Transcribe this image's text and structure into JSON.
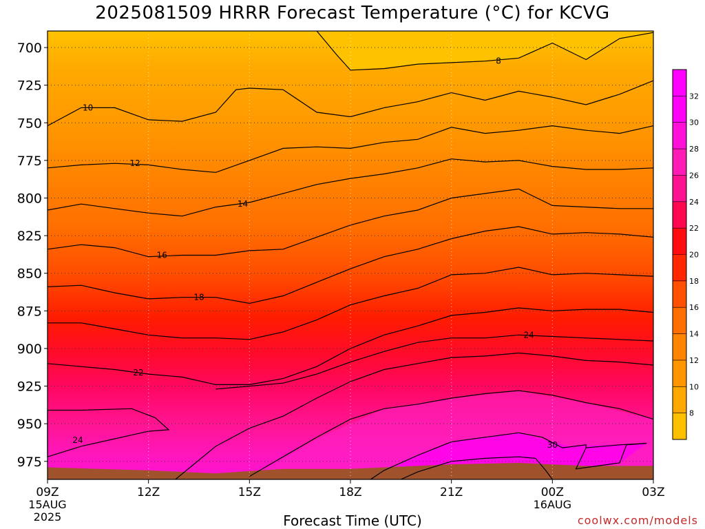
{
  "title": "2025081509 HRRR Forecast Temperature (°C) for KCVG",
  "credit": "coolwx.com/models",
  "chart_data": {
    "type": "contour",
    "variable": "Temperature",
    "units": "°C",
    "xlabel": "Forecast Time (UTC)",
    "ylabel": "",
    "x_range_hours": [
      0,
      18
    ],
    "x_ticks": [
      {
        "hour": 0,
        "label": "09Z",
        "sub": [
          "15AUG",
          "2025"
        ]
      },
      {
        "hour": 3,
        "label": "12Z"
      },
      {
        "hour": 6,
        "label": "15Z"
      },
      {
        "hour": 9,
        "label": "18Z"
      },
      {
        "hour": 12,
        "label": "21Z"
      },
      {
        "hour": 15,
        "label": "00Z",
        "sub": [
          "16AUG"
        ]
      },
      {
        "hour": 18,
        "label": "03Z"
      }
    ],
    "y_axis": {
      "type": "pressure_hPa",
      "inverted": true,
      "range": [
        689,
        987
      ],
      "ticks": [
        700,
        725,
        750,
        775,
        800,
        825,
        850,
        875,
        900,
        925,
        950,
        975
      ]
    },
    "grid": "dotted",
    "colorbar": {
      "position": "right",
      "labels": [
        8,
        10,
        12,
        14,
        16,
        18,
        20,
        22,
        24,
        26,
        28,
        30,
        32
      ],
      "colors": [
        "#ffc000",
        "#ffa800",
        "#ff9600",
        "#ff8400",
        "#ff6f00",
        "#ff5000",
        "#ff2800",
        "#ff0c10",
        "#ff0850",
        "#ff1290",
        "#ff1cb4",
        "#ff10d8",
        "#ff00f6",
        "#ff00ff"
      ]
    },
    "contour_levels": [
      8,
      10,
      12,
      14,
      16,
      18,
      20,
      22,
      24,
      26,
      28,
      30
    ],
    "contours": [
      {
        "level": 8,
        "labeled": true,
        "points": [
          [
            8.0,
            689
          ],
          [
            8.6,
            705
          ],
          [
            9.0,
            715
          ],
          [
            10,
            714
          ],
          [
            11,
            711
          ],
          [
            12,
            710
          ],
          [
            13,
            709
          ],
          [
            14,
            707
          ],
          [
            15,
            697
          ],
          [
            16,
            708
          ],
          [
            17,
            694
          ],
          [
            18,
            690
          ]
        ]
      },
      {
        "level": 10,
        "labeled": true,
        "points": [
          [
            0,
            752
          ],
          [
            1,
            740
          ],
          [
            2,
            740
          ],
          [
            3,
            748
          ],
          [
            4,
            749
          ],
          [
            5,
            743
          ],
          [
            5.6,
            728
          ],
          [
            6,
            727
          ],
          [
            7,
            728
          ],
          [
            8,
            743
          ],
          [
            9,
            746
          ],
          [
            10,
            740
          ],
          [
            11,
            736
          ],
          [
            12,
            730
          ],
          [
            13,
            735
          ],
          [
            14,
            729
          ],
          [
            15,
            733
          ],
          [
            16,
            738
          ],
          [
            17,
            731
          ],
          [
            18,
            722
          ]
        ]
      },
      {
        "level": 12,
        "labeled": true,
        "points": [
          [
            0,
            780
          ],
          [
            1,
            778
          ],
          [
            2,
            777
          ],
          [
            3,
            778
          ],
          [
            4,
            781
          ],
          [
            5,
            783
          ],
          [
            6,
            775
          ],
          [
            7,
            767
          ],
          [
            8,
            766
          ],
          [
            9,
            767
          ],
          [
            10,
            763
          ],
          [
            11,
            761
          ],
          [
            12,
            753
          ],
          [
            13,
            757
          ],
          [
            14,
            755
          ],
          [
            15,
            752
          ],
          [
            16,
            755
          ],
          [
            17,
            757
          ],
          [
            18,
            752
          ]
        ]
      },
      {
        "level": 14,
        "labeled": true,
        "points": [
          [
            0,
            808
          ],
          [
            1,
            804
          ],
          [
            2,
            807
          ],
          [
            3,
            810
          ],
          [
            4,
            812
          ],
          [
            5,
            806
          ],
          [
            6,
            803
          ],
          [
            7,
            797
          ],
          [
            8,
            791
          ],
          [
            9,
            787
          ],
          [
            10,
            784
          ],
          [
            11,
            780
          ],
          [
            12,
            774
          ],
          [
            13,
            776
          ],
          [
            14,
            775
          ],
          [
            15,
            779
          ],
          [
            16,
            781
          ],
          [
            17,
            781
          ],
          [
            18,
            780
          ]
        ]
      },
      {
        "level": 16,
        "labeled": true,
        "points": [
          [
            0,
            834
          ],
          [
            1,
            831
          ],
          [
            2,
            833
          ],
          [
            3,
            839
          ],
          [
            4,
            838
          ],
          [
            5,
            838
          ],
          [
            6,
            835
          ],
          [
            7,
            834
          ],
          [
            8,
            826
          ],
          [
            9,
            818
          ],
          [
            10,
            812
          ],
          [
            11,
            808
          ],
          [
            12,
            800
          ],
          [
            13,
            797
          ],
          [
            14,
            794
          ],
          [
            15,
            805
          ],
          [
            16,
            806
          ],
          [
            17,
            807
          ],
          [
            18,
            807
          ]
        ]
      },
      {
        "level": 18,
        "labeled": true,
        "points": [
          [
            0,
            859
          ],
          [
            1,
            858
          ],
          [
            2,
            863
          ],
          [
            3,
            867
          ],
          [
            4,
            866
          ],
          [
            5,
            866
          ],
          [
            6,
            870
          ],
          [
            7,
            865
          ],
          [
            8,
            856
          ],
          [
            9,
            847
          ],
          [
            10,
            839
          ],
          [
            11,
            834
          ],
          [
            12,
            827
          ],
          [
            13,
            822
          ],
          [
            14,
            819
          ],
          [
            15,
            824
          ],
          [
            16,
            823
          ],
          [
            17,
            824
          ],
          [
            18,
            826
          ]
        ]
      },
      {
        "level": 20,
        "labeled": false,
        "points": [
          [
            0,
            883
          ],
          [
            1,
            883
          ],
          [
            2,
            887
          ],
          [
            3,
            891
          ],
          [
            4,
            893
          ],
          [
            5,
            893
          ],
          [
            6,
            894
          ],
          [
            7,
            889
          ],
          [
            8,
            881
          ],
          [
            9,
            871
          ],
          [
            10,
            865
          ],
          [
            11,
            860
          ],
          [
            12,
            851
          ],
          [
            13,
            850
          ],
          [
            14,
            846
          ],
          [
            15,
            851
          ],
          [
            16,
            850
          ],
          [
            17,
            851
          ],
          [
            18,
            852
          ]
        ]
      },
      {
        "level": 22,
        "labeled": true,
        "points": [
          [
            0,
            910
          ],
          [
            1,
            912
          ],
          [
            2,
            914
          ],
          [
            3,
            917
          ],
          [
            4,
            919
          ],
          [
            5,
            924
          ],
          [
            6,
            924
          ],
          [
            7,
            920
          ],
          [
            8,
            912
          ],
          [
            9,
            900
          ],
          [
            10,
            891
          ],
          [
            11,
            885
          ],
          [
            12,
            878
          ],
          [
            13,
            876
          ],
          [
            14,
            873
          ],
          [
            15,
            875
          ],
          [
            16,
            874
          ],
          [
            17,
            874
          ],
          [
            18,
            876
          ]
        ]
      },
      {
        "level": 24,
        "labeled": true,
        "points": [
          [
            0,
            972
          ],
          [
            1,
            965
          ],
          [
            2,
            960
          ],
          [
            3,
            955
          ],
          [
            3.6,
            954
          ],
          [
            3.2,
            946
          ],
          [
            2.5,
            940
          ],
          [
            1,
            941
          ],
          [
            0,
            941
          ],
          [
            0,
            972
          ]
        ]
      },
      {
        "level": 24,
        "labeled": true,
        "points": [
          [
            5,
            927
          ],
          [
            6,
            925
          ],
          [
            7,
            923
          ],
          [
            8,
            917
          ],
          [
            9,
            909
          ],
          [
            10,
            902
          ],
          [
            11,
            896
          ],
          [
            12,
            893
          ],
          [
            13,
            893
          ],
          [
            14,
            891
          ],
          [
            15,
            892
          ],
          [
            16,
            893
          ],
          [
            17,
            894
          ],
          [
            18,
            895
          ]
        ]
      },
      {
        "level": 26,
        "labeled": false,
        "points": [
          [
            3.8,
            987
          ],
          [
            5,
            965
          ],
          [
            6,
            953
          ],
          [
            7,
            945
          ],
          [
            8,
            933
          ],
          [
            9,
            922
          ],
          [
            10,
            914
          ],
          [
            11,
            910
          ],
          [
            12,
            906
          ],
          [
            13,
            905
          ],
          [
            14,
            903
          ],
          [
            15,
            905
          ],
          [
            16,
            908
          ],
          [
            17,
            909
          ],
          [
            18,
            911
          ]
        ]
      },
      {
        "level": 28,
        "labeled": false,
        "points": [
          [
            6,
            985
          ],
          [
            7,
            972
          ],
          [
            8,
            959
          ],
          [
            9,
            947
          ],
          [
            10,
            940
          ],
          [
            11,
            937
          ],
          [
            12,
            933
          ],
          [
            13,
            930
          ],
          [
            14,
            928
          ],
          [
            15,
            931
          ],
          [
            16,
            936
          ],
          [
            17,
            940
          ],
          [
            18,
            947
          ]
        ]
      },
      {
        "level": 30,
        "labeled": true,
        "points": [
          [
            9.6,
            987
          ],
          [
            10,
            981
          ],
          [
            11,
            971
          ],
          [
            12,
            962
          ],
          [
            13,
            959
          ],
          [
            14,
            956
          ],
          [
            14.7,
            959
          ],
          [
            15.3,
            966
          ],
          [
            16,
            964
          ],
          [
            16,
            966
          ],
          [
            17,
            964
          ],
          [
            17.8,
            963
          ],
          [
            17.2,
            964
          ],
          [
            17,
            976
          ],
          [
            15.7,
            980
          ],
          [
            16,
            966
          ]
        ]
      },
      {
        "level": 32,
        "labeled": false,
        "points": [
          [
            10.5,
            987
          ],
          [
            11,
            982
          ],
          [
            12,
            975
          ],
          [
            13,
            973
          ],
          [
            14,
            972
          ],
          [
            14.5,
            973
          ],
          [
            14.8,
            981
          ],
          [
            15,
            987
          ]
        ]
      }
    ],
    "ground": {
      "color": "#a0522d"
    }
  }
}
